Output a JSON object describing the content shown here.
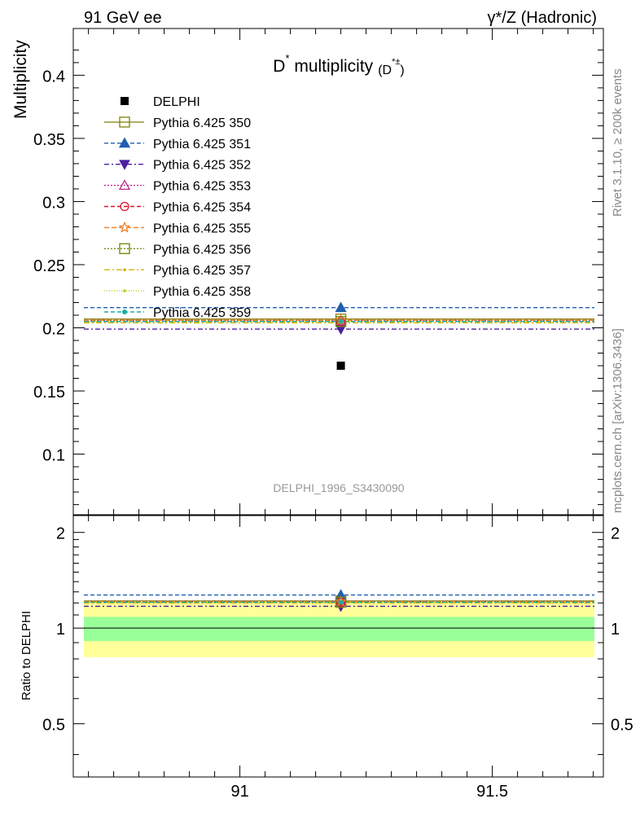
{
  "header": {
    "left": "91 GeV ee",
    "right": "γ*/Z (Hadronic)"
  },
  "side_labels": {
    "rivet": "Rivet 3.1.10, ≥ 200k events",
    "mcplots": "mcplots.cern.ch [arXiv:1306.3436]"
  },
  "chart_data": [
    {
      "type": "scatter",
      "title": "D* multiplicity (D*±)",
      "title_main": "D",
      "title_sup": "*",
      "title_rest": " multiplicity",
      "title_paren_open": "(D",
      "title_paren_sup": "*±",
      "title_paren_close": ")",
      "ylabel": "Multiplicity",
      "xlim": [
        90.67,
        91.72
      ],
      "ylim": [
        0.052,
        0.437
      ],
      "yticks": [
        0.1,
        0.15,
        0.2,
        0.25,
        0.3,
        0.35,
        0.4
      ],
      "ytick_labels": [
        "0.1",
        "0.15",
        "0.2",
        "0.25",
        "0.3",
        "0.35",
        "0.4"
      ],
      "watermark": "DELPHI_1996_S3430090",
      "legend_position": "top-left",
      "data_point": {
        "name": "DELPHI",
        "x": 91.2,
        "y": 0.17,
        "color": "#000000"
      },
      "series": [
        {
          "name": "Pythia 6.425 350",
          "x": 91.2,
          "y": 0.207,
          "color": "#8a8a1e",
          "dash": "",
          "marker": "square-open"
        },
        {
          "name": "Pythia 6.425 351",
          "x": 91.2,
          "y": 0.216,
          "color": "#1f5fb0",
          "dash": "5,3",
          "marker": "triangle-up-filled"
        },
        {
          "name": "Pythia 6.425 352",
          "x": 91.2,
          "y": 0.199,
          "color": "#4b1fa0",
          "dash": "6,3,2,3",
          "marker": "triangle-down-filled"
        },
        {
          "name": "Pythia 6.425 353",
          "x": 91.2,
          "y": 0.206,
          "color": "#c0288a",
          "dash": "2,2",
          "marker": "triangle-up-open"
        },
        {
          "name": "Pythia 6.425 354",
          "x": 91.2,
          "y": 0.205,
          "color": "#e0102a",
          "dash": "5,3",
          "marker": "circle-open"
        },
        {
          "name": "Pythia 6.425 355",
          "x": 91.2,
          "y": 0.206,
          "color": "#f07a1e",
          "dash": "6,3",
          "marker": "star-open"
        },
        {
          "name": "Pythia 6.425 356",
          "x": 91.2,
          "y": 0.205,
          "color": "#7a8a10",
          "dash": "2,2",
          "marker": "square-open"
        },
        {
          "name": "Pythia 6.425 357",
          "x": 91.2,
          "y": 0.204,
          "color": "#d8b400",
          "dash": "7,3,2,3",
          "marker": "dot"
        },
        {
          "name": "Pythia 6.425 358",
          "x": 91.2,
          "y": 0.205,
          "color": "#b8d020",
          "dash": "1,2",
          "marker": "dot"
        },
        {
          "name": "Pythia 6.425 359",
          "x": 91.2,
          "y": 0.205,
          "color": "#18b0a0",
          "dash": "5,3",
          "marker": "dot-filled"
        }
      ]
    },
    {
      "type": "scatter",
      "ylabel": "Ratio to DELPHI",
      "xlim": [
        90.67,
        91.72
      ],
      "ylim": [
        0.34,
        2.26
      ],
      "xticks": [
        91,
        91.5
      ],
      "xtick_labels": [
        "91",
        "91.5"
      ],
      "yticks": [
        0.5,
        1,
        2
      ],
      "ytick_labels": [
        "0.5",
        "1",
        "2"
      ],
      "bands": [
        {
          "name": "outer",
          "lo": 0.81,
          "hi": 1.205,
          "color": "#ffff99"
        },
        {
          "name": "inner",
          "lo": 0.91,
          "hi": 1.085,
          "color": "#99ff99"
        }
      ],
      "reference_line": 1.0
    }
  ]
}
